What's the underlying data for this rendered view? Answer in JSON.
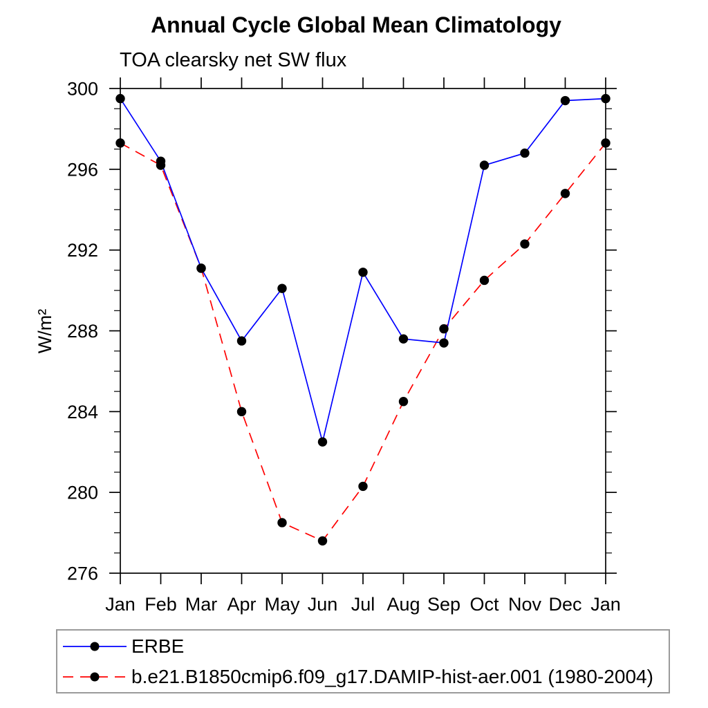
{
  "chart_data": {
    "type": "line",
    "title": "Annual Cycle Global Mean Climatology",
    "subtitle": "TOA clearsky net SW flux",
    "ylabel": "W/m²",
    "xlabel": "",
    "categories": [
      "Jan",
      "Feb",
      "Mar",
      "Apr",
      "May",
      "Jun",
      "Jul",
      "Aug",
      "Sep",
      "Oct",
      "Nov",
      "Dec",
      "Jan"
    ],
    "ylim": [
      276,
      300
    ],
    "ytick_major_step": 4,
    "ytick_minor_step": 1,
    "ytick_major_labels": [
      "276",
      "280",
      "284",
      "288",
      "292",
      "296",
      "300"
    ],
    "grid": false,
    "legend_position": "bottom-left-box",
    "frame_color": "#000000",
    "marker": "filled-circle",
    "marker_color": "#000000",
    "series": [
      {
        "name": "ERBE",
        "color": "#0000ff",
        "line_style": "solid",
        "values": [
          299.5,
          296.4,
          291.1,
          287.5,
          290.1,
          282.5,
          290.9,
          287.6,
          287.4,
          296.2,
          296.8,
          299.4,
          299.5
        ]
      },
      {
        "name": "b.e21.B1850cmip6.f09_g17.DAMIP-hist-aer.001 (1980-2004)",
        "color": "#ff0000",
        "line_style": "dashed",
        "values": [
          297.3,
          296.2,
          291.1,
          284.0,
          278.5,
          277.6,
          280.3,
          284.5,
          288.1,
          290.5,
          292.3,
          294.8,
          297.3
        ]
      }
    ]
  }
}
